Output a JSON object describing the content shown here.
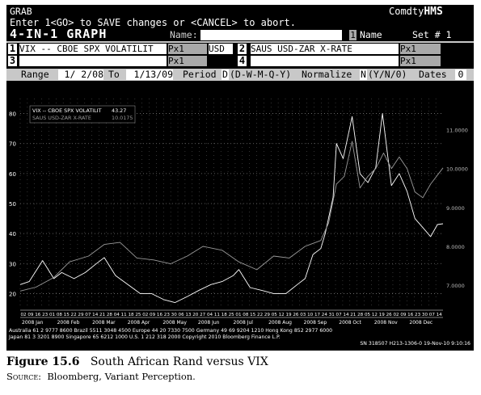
{
  "terminal": {
    "title": "GRAB",
    "brand_prefix": "Comdty",
    "brand_suffix": "HMS",
    "instruction": "Enter 1<GO> to SAVE changes or <CANCEL> to abort.",
    "screen_title": "4-IN-1 GRAPH",
    "name_label": "Name:",
    "name_value": "",
    "name_num": "1",
    "name_suffix": "Name",
    "set_label": "Set # 1",
    "slot1_num": "1",
    "slot1_ticker": "VIX -- CBOE SPX VOLATILIT",
    "slot1_field": "Px1",
    "slot1_ccy": "USD",
    "slot2_num": "2",
    "slot2_ticker": "SAUS  USD-ZAR X-RATE",
    "slot2_field": "Px1",
    "slot3_num": "3",
    "slot3_field": "Px1",
    "slot4_num": "4",
    "slot4_field": "Px1",
    "range_label": "Range",
    "range_start": "1/ 2/08",
    "to_label": "To",
    "range_end": "1/13/09",
    "period_label": "Period",
    "period_value": "D",
    "period_options": "(D-W-M-Q-Y)",
    "normalize_label": "Normalize",
    "normalize_value": "N",
    "normalize_options": "(Y/N/0)",
    "dates_label": "Dates",
    "dates_value": "0",
    "footer1": "Australia 61 2 9777 8600 Brazil 5511 3048 4500 Europe 44 20 7330 7500 Germany 49 69 9204 1210 Hong Kong 852 2977 6000",
    "footer2": "Japan 81 3 3201 8900        Singapore 65 6212 1000        U.S. 1 212 318 2000        Copyright 2010 Bloomberg Finance L.P.",
    "footer3": "SN 318507 H213-1306-0 19-Nov-10  9:10:16"
  },
  "chart_data": {
    "type": "line",
    "legend": [
      {
        "name": "VIX -- CBOE SPX VOLATILIT",
        "value": "43.27",
        "color": "#ffffff"
      },
      {
        "name": "SAUS  USD-ZAR X-RATE",
        "value": "10.0175",
        "color": "#9a9a9a"
      }
    ],
    "legend_position": "top-left",
    "grid": true,
    "left_axis": {
      "ylim": [
        15,
        85
      ],
      "ticks": [
        20,
        30,
        40,
        50,
        60,
        70,
        80
      ]
    },
    "right_axis": {
      "ylim": [
        6.4,
        11.8
      ],
      "ticks": [
        "7.0000",
        "8.0000",
        "9.0000",
        "10.0000",
        "11.0000"
      ]
    },
    "xlim": [
      "2008-01-02",
      "2009-01-13"
    ],
    "x_day_labels": [
      "02",
      "09",
      "16",
      "23",
      "01",
      "08",
      "15",
      "22",
      "29",
      "07",
      "14",
      "21",
      "28",
      "04",
      "11",
      "18",
      "25",
      "02",
      "09",
      "16",
      "23",
      "30",
      "06",
      "13",
      "20",
      "27",
      "04",
      "11",
      "18",
      "25",
      "01",
      "08",
      "15",
      "22",
      "29",
      "05",
      "12",
      "19",
      "26",
      "03",
      "10",
      "17",
      "24",
      "31",
      "07",
      "14",
      "21",
      "28",
      "05",
      "12",
      "19",
      "26",
      "02",
      "09",
      "16",
      "23",
      "30",
      "07",
      "14"
    ],
    "x_month_labels": [
      "2008 Jan",
      "2008 Feb",
      "2008 Mar",
      "2008 Apr",
      "2008 May",
      "2008 Jun",
      "2008 Jul",
      "2008 Aug",
      "2008 Sep",
      "2008 Oct",
      "2008 Nov",
      "2008 Dec"
    ],
    "series": [
      {
        "name": "VIX -- CBOE SPX VOLATILIT",
        "axis": "left",
        "x": [
          "2008-01-02",
          "2008-01-10",
          "2008-01-22",
          "2008-02-01",
          "2008-02-08",
          "2008-02-19",
          "2008-02-29",
          "2008-03-10",
          "2008-03-17",
          "2008-03-27",
          "2008-04-07",
          "2008-04-18",
          "2008-04-28",
          "2008-05-09",
          "2008-05-19",
          "2008-05-30",
          "2008-06-09",
          "2008-06-20",
          "2008-06-30",
          "2008-07-10",
          "2008-07-15",
          "2008-07-25",
          "2008-08-05",
          "2008-08-15",
          "2008-08-26",
          "2008-09-05",
          "2008-09-12",
          "2008-09-19",
          "2008-09-26",
          "2008-09-30",
          "2008-10-07",
          "2008-10-10",
          "2008-10-16",
          "2008-10-24",
          "2008-10-31",
          "2008-11-07",
          "2008-11-14",
          "2008-11-20",
          "2008-11-28",
          "2008-12-05",
          "2008-12-12",
          "2008-12-19",
          "2008-12-26",
          "2009-01-02",
          "2009-01-08",
          "2009-01-13"
        ],
        "y": [
          23,
          24,
          31,
          25,
          27,
          25,
          27,
          30,
          32,
          26,
          23,
          20,
          20,
          18,
          17,
          19,
          21,
          23,
          24,
          26,
          28,
          22,
          21,
          20,
          20,
          23,
          25,
          33,
          35,
          40,
          52,
          70,
          65,
          79,
          60,
          57,
          62,
          80,
          56,
          60,
          54,
          45,
          42,
          39,
          43,
          43.27
        ]
      },
      {
        "name": "SAUS  USD-ZAR X-RATE",
        "axis": "right",
        "x": [
          "2008-01-02",
          "2008-01-16",
          "2008-02-01",
          "2008-02-15",
          "2008-03-03",
          "2008-03-17",
          "2008-03-31",
          "2008-04-15",
          "2008-04-30",
          "2008-05-15",
          "2008-05-30",
          "2008-06-13",
          "2008-06-30",
          "2008-07-15",
          "2008-07-31",
          "2008-08-15",
          "2008-08-29",
          "2008-09-12",
          "2008-09-26",
          "2008-10-03",
          "2008-10-10",
          "2008-10-17",
          "2008-10-24",
          "2008-10-31",
          "2008-11-07",
          "2008-11-14",
          "2008-11-21",
          "2008-11-28",
          "2008-12-05",
          "2008-12-12",
          "2008-12-19",
          "2008-12-26",
          "2009-01-02",
          "2009-01-13"
        ],
        "y": [
          6.85,
          6.95,
          7.2,
          7.6,
          7.75,
          8.05,
          8.1,
          7.7,
          7.65,
          7.55,
          7.75,
          8.0,
          7.9,
          7.6,
          7.4,
          7.75,
          7.7,
          8.0,
          8.15,
          8.6,
          9.6,
          9.8,
          10.7,
          9.5,
          9.8,
          10.0,
          10.4,
          10.0,
          10.3,
          10.0,
          9.4,
          9.25,
          9.6,
          10.0175
        ]
      }
    ]
  }
}
